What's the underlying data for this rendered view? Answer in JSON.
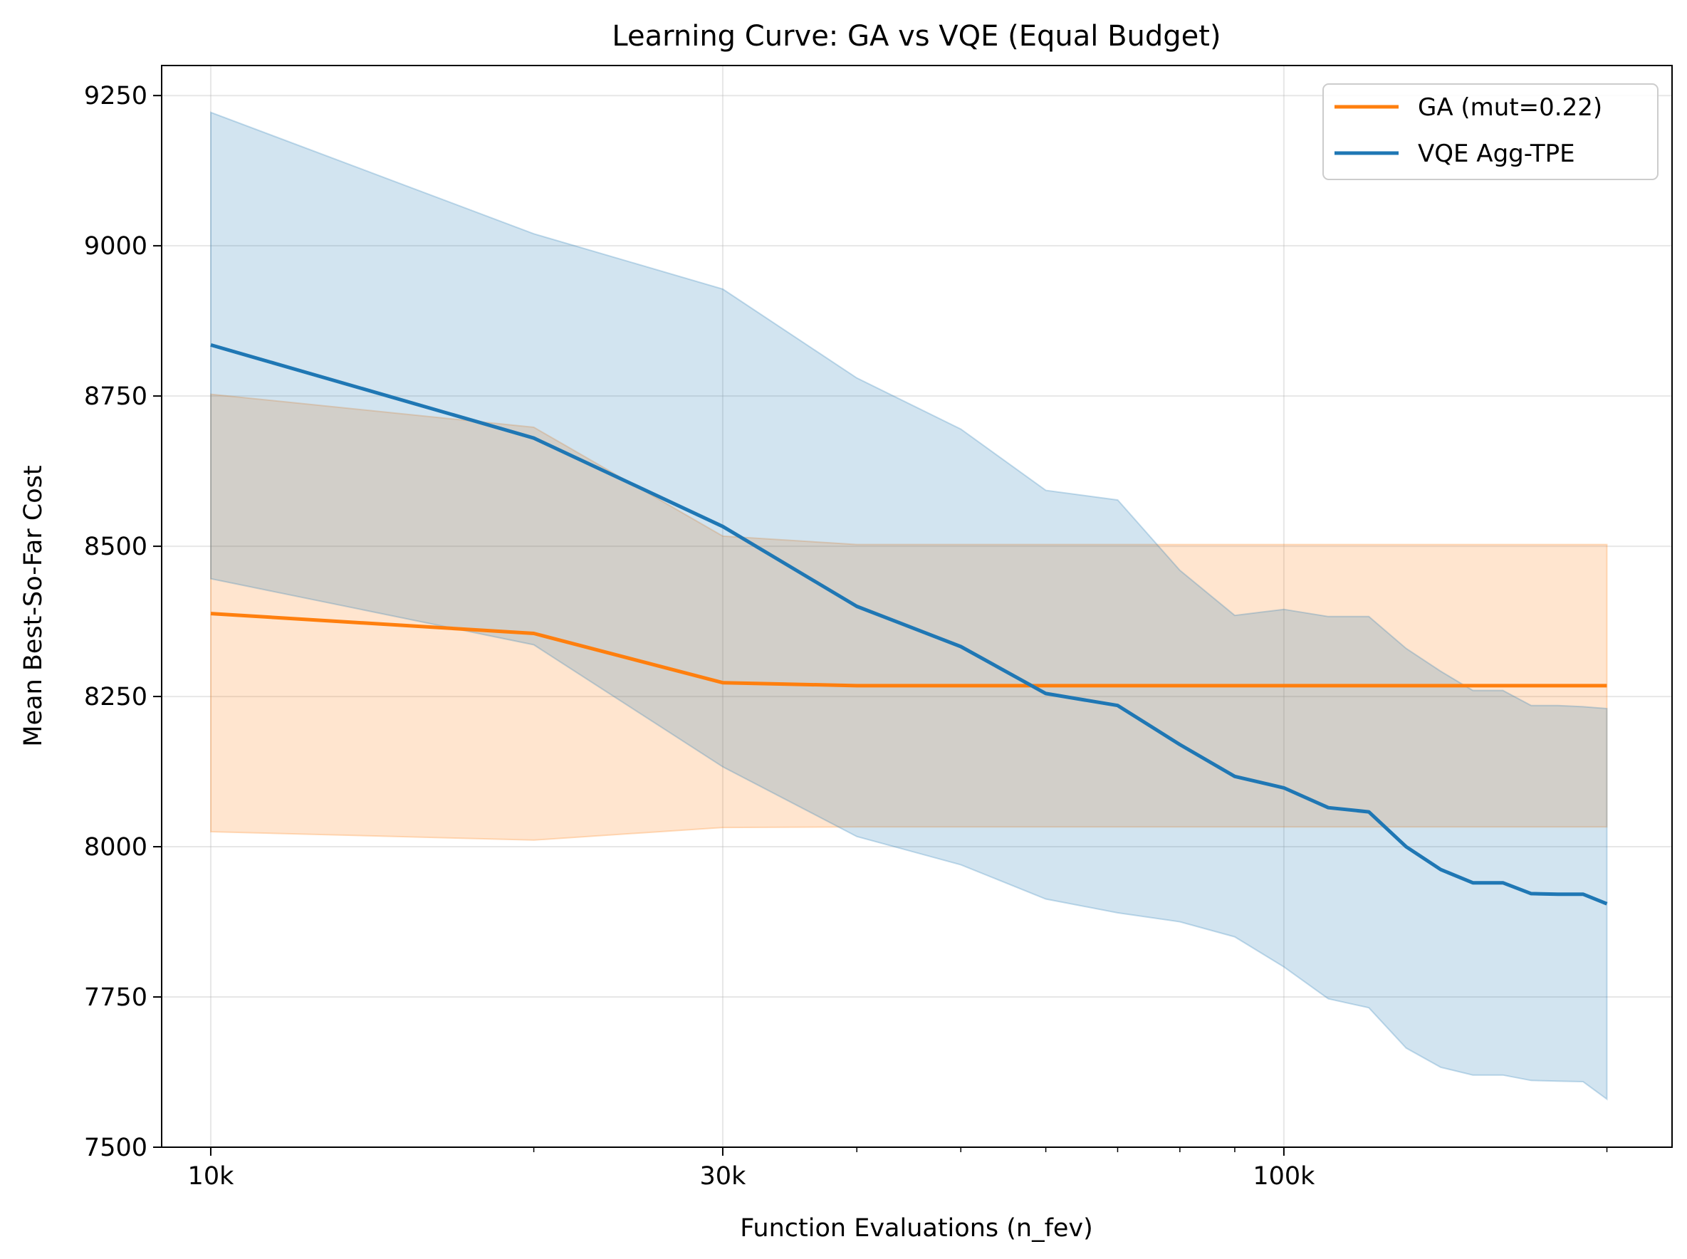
{
  "chart_data": {
    "type": "line",
    "title": "Learning Curve: GA vs VQE (Equal Budget)",
    "xlabel": "Function Evaluations (n_fev)",
    "ylabel": "Mean Best-So-Far Cost",
    "x_scale": "log",
    "xlim": [
      9000,
      230000
    ],
    "ylim": [
      7500,
      9300
    ],
    "x_ticks": [
      {
        "value": 10000,
        "label": "10k"
      },
      {
        "value": 30000,
        "label": "30k"
      },
      {
        "value": 100000,
        "label": "100k"
      }
    ],
    "x_minor_ticks": [
      20000,
      40000,
      50000,
      60000,
      70000,
      80000,
      90000,
      200000
    ],
    "y_ticks": [
      7500,
      7750,
      8000,
      8250,
      8500,
      8750,
      9000,
      9250
    ],
    "grid": true,
    "legend_position": "top-right",
    "series": [
      {
        "name": "GA (mut=0.22)",
        "color": "#ff7f0e",
        "x": [
          10000,
          20000,
          30000,
          40000,
          200000
        ],
        "y": [
          8388,
          8355,
          8273,
          8268,
          8268
        ],
        "band_upper": [
          8753,
          8698,
          8517,
          8503,
          8503
        ],
        "band_lower": [
          8025,
          8011,
          8032,
          8033,
          8033
        ]
      },
      {
        "name": "VQE Agg-TPE",
        "color": "#1f77b4",
        "x": [
          10000,
          20000,
          30000,
          40000,
          50000,
          60000,
          70000,
          80000,
          90000,
          100000,
          110000,
          120000,
          130000,
          140000,
          150000,
          160000,
          170000,
          180000,
          190000,
          200000
        ],
        "y": [
          8835,
          8680,
          8533,
          8400,
          8333,
          8255,
          8235,
          8170,
          8117,
          8098,
          8065,
          8058,
          8000,
          7962,
          7940,
          7940,
          7922,
          7921,
          7921,
          7905
        ],
        "band_upper": [
          9222,
          9020,
          8928,
          8780,
          8695,
          8593,
          8577,
          8460,
          8385,
          8395,
          8383,
          8383,
          8330,
          8292,
          8260,
          8260,
          8235,
          8235,
          8233,
          8230
        ],
        "band_lower": [
          8446,
          8336,
          8133,
          8017,
          7970,
          7913,
          7890,
          7875,
          7850,
          7800,
          7747,
          7732,
          7665,
          7633,
          7620,
          7620,
          7611,
          7610,
          7609,
          7580
        ]
      }
    ]
  }
}
